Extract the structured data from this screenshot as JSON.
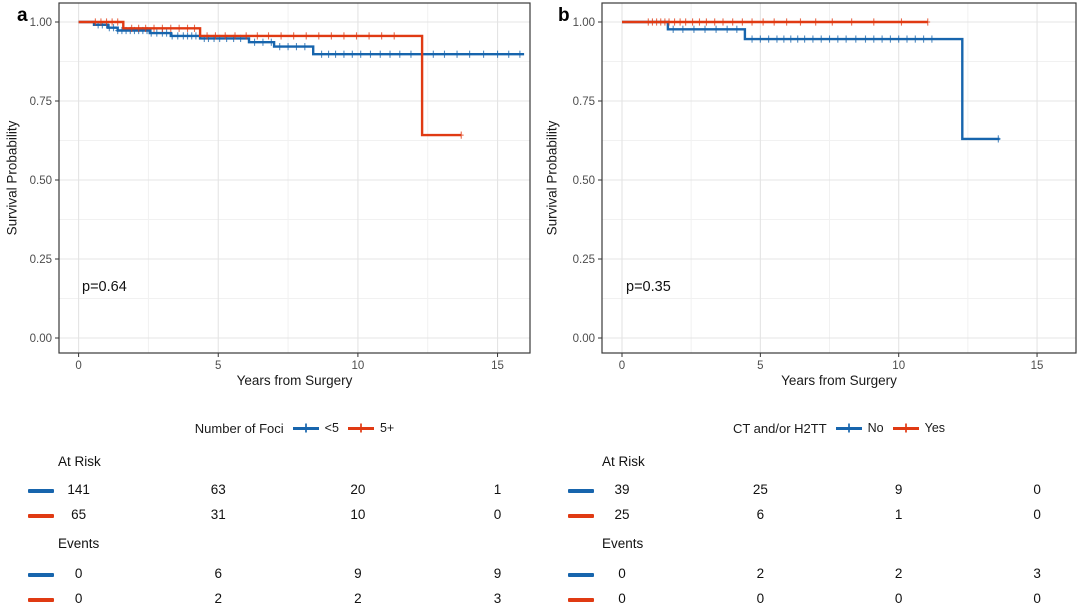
{
  "figure_background": "#ffffff",
  "chart_data": [
    {
      "type": "line",
      "subtype": "kaplan-meier-step",
      "panel_label": "a",
      "xlabel": "Years from Surgery",
      "ylabel": "Survival Probability",
      "p_value": "p=0.64",
      "xlim": [
        -0.7,
        16.2
      ],
      "ylim": [
        0,
        1.06
      ],
      "grid": true,
      "x_ticks": [
        0,
        5,
        10,
        15
      ],
      "x_tick_labels": [
        "0",
        "5",
        "10",
        "15"
      ],
      "y_ticks": [
        0,
        0.25,
        0.5,
        0.75,
        1.0
      ],
      "y_tick_labels": [
        "0.00",
        "0.25",
        "0.50",
        "0.75",
        "1.00"
      ],
      "legend_title": "Number of Foci",
      "legend_position": "bottom",
      "series": [
        {
          "name": "<5",
          "color": "#1765AD",
          "points": [
            [
              0,
              1
            ],
            [
              0.55,
              1
            ],
            [
              0.55,
              0.991
            ],
            [
              1.05,
              0.991
            ],
            [
              1.05,
              0.982
            ],
            [
              1.4,
              0.982
            ],
            [
              1.4,
              0.973
            ],
            [
              2.55,
              0.973
            ],
            [
              2.55,
              0.965
            ],
            [
              3.3,
              0.965
            ],
            [
              3.3,
              0.956
            ],
            [
              4.35,
              0.956
            ],
            [
              4.35,
              0.948
            ],
            [
              6.1,
              0.948
            ],
            [
              6.1,
              0.936
            ],
            [
              7.0,
              0.936
            ],
            [
              7.0,
              0.922
            ],
            [
              8.4,
              0.922
            ],
            [
              8.4,
              0.898
            ],
            [
              15.95,
              0.898
            ]
          ],
          "censor_x": [
            0.7,
            0.85,
            1.0,
            1.1,
            1.25,
            1.4,
            1.55,
            1.7,
            1.85,
            2.0,
            2.15,
            2.3,
            2.45,
            2.6,
            2.8,
            3.0,
            3.15,
            3.35,
            3.55,
            3.75,
            3.9,
            4.05,
            4.2,
            4.5,
            4.65,
            4.85,
            5.05,
            5.3,
            5.55,
            5.8,
            6.3,
            6.6,
            6.9,
            7.2,
            7.5,
            7.8,
            8.1,
            8.7,
            8.95,
            9.2,
            9.5,
            9.8,
            10.1,
            10.45,
            10.8,
            11.15,
            11.5,
            11.9,
            12.3,
            12.7,
            13.1,
            13.55,
            14.0,
            14.5,
            15.0,
            15.4,
            15.8
          ]
        },
        {
          "name": "5+",
          "color": "#E03A13",
          "points": [
            [
              0,
              1
            ],
            [
              1.6,
              1
            ],
            [
              1.6,
              0.98
            ],
            [
              4.35,
              0.98
            ],
            [
              4.35,
              0.956
            ],
            [
              12.3,
              0.956
            ],
            [
              12.3,
              0.642
            ],
            [
              13.7,
              0.642
            ]
          ],
          "censor_x": [
            0.6,
            0.8,
            1.0,
            1.2,
            1.4,
            1.9,
            2.15,
            2.4,
            2.7,
            3.0,
            3.3,
            3.6,
            3.9,
            4.15,
            4.6,
            4.9,
            5.25,
            5.6,
            6.0,
            6.4,
            6.8,
            7.25,
            7.7,
            8.15,
            8.6,
            9.05,
            9.5,
            9.95,
            10.4,
            10.85,
            11.3,
            13.7
          ]
        }
      ],
      "risk_table": {
        "at_risk_label": "At Risk",
        "events_label": "Events",
        "times": [
          0,
          5,
          10,
          15
        ],
        "at_risk": [
          [
            141,
            63,
            20,
            1
          ],
          [
            65,
            31,
            10,
            0
          ]
        ],
        "events": [
          [
            0,
            6,
            9,
            9
          ],
          [
            0,
            2,
            2,
            3
          ]
        ]
      }
    },
    {
      "type": "line",
      "subtype": "kaplan-meier-step",
      "panel_label": "b",
      "xlabel": "Years from Surgery",
      "ylabel": "Survival Probability",
      "p_value": "p=0.35",
      "xlim": [
        -0.7,
        16.2
      ],
      "ylim": [
        0,
        1.06
      ],
      "grid": true,
      "x_ticks": [
        0,
        5,
        10,
        15
      ],
      "x_tick_labels": [
        "0",
        "5",
        "10",
        "15"
      ],
      "y_ticks": [
        0,
        0.25,
        0.5,
        0.75,
        1.0
      ],
      "y_tick_labels": [
        "0.00",
        "0.25",
        "0.50",
        "0.75",
        "1.00"
      ],
      "legend_title": "CT and/or H2TT",
      "legend_position": "bottom",
      "series": [
        {
          "name": "No",
          "color": "#1765AD",
          "points": [
            [
              0,
              1
            ],
            [
              1.66,
              1
            ],
            [
              1.66,
              0.977
            ],
            [
              4.44,
              0.977
            ],
            [
              4.44,
              0.946
            ],
            [
              12.3,
              0.946
            ],
            [
              12.3,
              0.63
            ],
            [
              13.65,
              0.63
            ]
          ],
          "censor_x": [
            1.85,
            2.2,
            2.6,
            3.0,
            3.4,
            3.8,
            4.15,
            4.7,
            5.0,
            5.3,
            5.6,
            5.85,
            6.1,
            6.35,
            6.6,
            6.9,
            7.2,
            7.5,
            7.8,
            8.1,
            8.45,
            8.8,
            9.1,
            9.4,
            9.7,
            10.0,
            10.3,
            10.6,
            10.9,
            11.2,
            13.6
          ]
        },
        {
          "name": "Yes",
          "color": "#E03A13",
          "points": [
            [
              0,
              1
            ],
            [
              11.05,
              1
            ]
          ],
          "censor_x": [
            0.95,
            1.1,
            1.25,
            1.4,
            1.55,
            1.7,
            1.9,
            2.1,
            2.3,
            2.55,
            2.8,
            3.05,
            3.35,
            3.65,
            4.0,
            4.35,
            4.7,
            5.1,
            5.5,
            5.95,
            6.45,
            7.0,
            7.6,
            8.3,
            9.1,
            10.1,
            11.05
          ]
        }
      ],
      "risk_table": {
        "at_risk_label": "At Risk",
        "events_label": "Events",
        "times": [
          0,
          5,
          10,
          15
        ],
        "at_risk": [
          [
            39,
            25,
            9,
            0
          ],
          [
            25,
            6,
            1,
            0
          ]
        ],
        "events": [
          [
            0,
            2,
            2,
            3
          ],
          [
            0,
            0,
            0,
            0
          ]
        ]
      }
    }
  ]
}
